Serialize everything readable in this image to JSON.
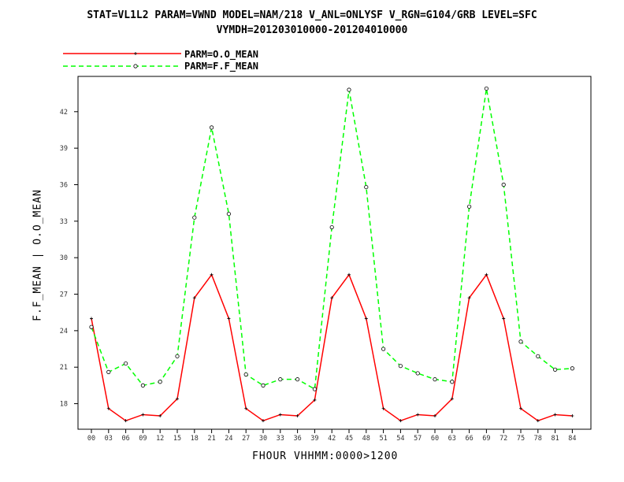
{
  "chart_data": {
    "type": "line",
    "title": "STAT=VL1L2 PARAM=VWND MODEL=NAM/218 V_ANL=ONLYSF V_RGN=G104/GRB LEVEL=SFC",
    "subtitle": "VYMDH=201203010000-201204010000",
    "xlabel": "FHOUR VHHMM:0000>1200",
    "ylabel": "F.F_MEAN | O.O_MEAN",
    "categories": [
      "00",
      "03",
      "06",
      "09",
      "12",
      "15",
      "18",
      "21",
      "24",
      "27",
      "30",
      "33",
      "36",
      "39",
      "42",
      "45",
      "48",
      "51",
      "54",
      "57",
      "60",
      "63",
      "66",
      "69",
      "72",
      "75",
      "78",
      "81",
      "84"
    ],
    "yticks": [
      18,
      21,
      24,
      27,
      30,
      33,
      36,
      39,
      42
    ],
    "ylim": [
      15.9,
      44.9
    ],
    "grid": false,
    "legend_position": "top-left",
    "series": [
      {
        "name": "PARM=O.O_MEAN",
        "color": "#ff0000",
        "dashed": false,
        "marker": "plus",
        "values": [
          25.0,
          17.6,
          16.6,
          17.1,
          17.0,
          18.4,
          26.7,
          28.6,
          25.0,
          17.6,
          16.6,
          17.1,
          17.0,
          18.3,
          26.7,
          28.6,
          25.0,
          17.6,
          16.6,
          17.1,
          17.0,
          18.4,
          26.7,
          28.6,
          25.0,
          17.6,
          16.6,
          17.1,
          17.0
        ]
      },
      {
        "name": "PARM=F.F_MEAN",
        "color": "#00ff00",
        "dashed": true,
        "marker": "circle",
        "values": [
          24.3,
          20.6,
          21.3,
          19.5,
          19.8,
          21.9,
          33.3,
          40.7,
          33.6,
          20.4,
          19.5,
          20.0,
          20.0,
          19.2,
          32.5,
          43.8,
          35.8,
          22.5,
          21.1,
          20.5,
          20.0,
          19.8,
          34.2,
          43.9,
          36.0,
          23.1,
          21.9,
          20.8,
          20.9
        ]
      }
    ]
  }
}
